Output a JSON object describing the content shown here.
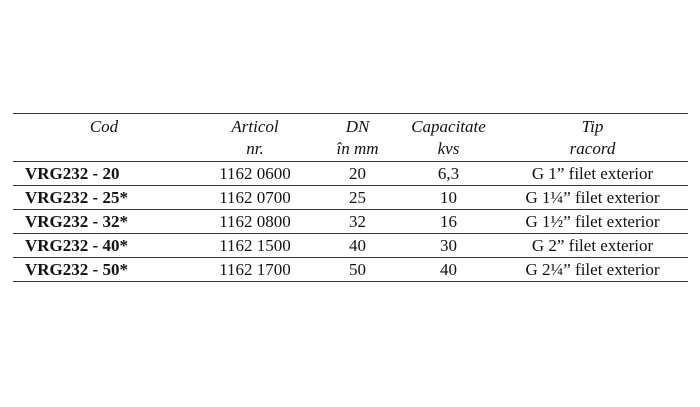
{
  "table": {
    "header": [
      [
        "Cod"
      ],
      [
        "Articol",
        "nr."
      ],
      [
        "DN",
        "în mm"
      ],
      [
        "Capacitate",
        "kvs"
      ],
      [
        "Tip",
        "racord"
      ]
    ],
    "rows": [
      [
        "VRG232 - 20",
        "1162 0600",
        "20",
        "6,3",
        "G 1” filet exterior"
      ],
      [
        "VRG232 - 25*",
        "1162 0700",
        "25",
        "10",
        "G 1¼” filet exterior"
      ],
      [
        "VRG232 - 32*",
        "1162 0800",
        "32",
        "16",
        "G 1½” filet exterior"
      ],
      [
        "VRG232 - 40*",
        "1162 1500",
        "40",
        "30",
        "G 2” filet exterior"
      ],
      [
        "VRG232 - 50*",
        "1162 1700",
        "50",
        "40",
        "G 2¼” filet exterior"
      ]
    ]
  }
}
